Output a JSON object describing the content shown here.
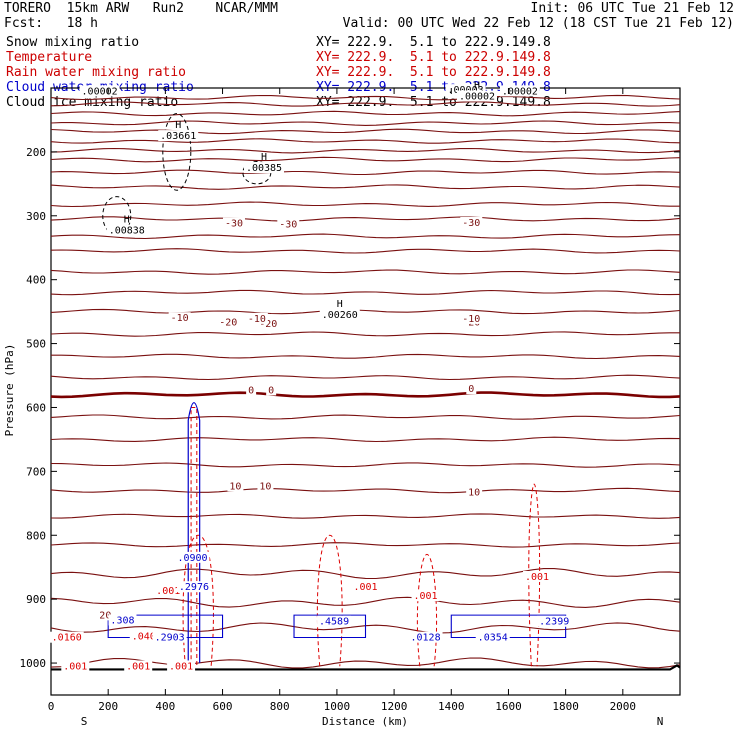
{
  "header": {
    "model_title": "TORERO  15km ARW   Run2    NCAR/MMM",
    "init": "Init: 06 UTC Tue 21 Feb 12",
    "fcst": "Fcst:   18 h",
    "valid": "Valid: 00 UTC Wed 22 Feb 12 (18 CST Tue 21 Feb 12)"
  },
  "fields": [
    {
      "label": "Snow mixing ratio",
      "xy": "XY= 222.9.  5.1 to 222.9.149.8",
      "color": "#000000"
    },
    {
      "label": "Temperature",
      "xy": "XY= 222.9.  5.1 to 222.9.149.8",
      "color": "#cc0000"
    },
    {
      "label": "Rain water mixing ratio",
      "xy": "XY= 222.9.  5.1 to 222.9.149.8",
      "color": "#cc0000"
    },
    {
      "label": "Cloud water mixing ratio",
      "xy": "XY= 222.9.  5.1 to 222.9.149.8",
      "color": "#0000cc"
    },
    {
      "label": "Cloud ice mixing ratio",
      "xy": "XY= 222.9.  5.1 to 222.9.149.8",
      "color": "#000000"
    }
  ],
  "colors": {
    "temperature": "#7a1010",
    "freezing": "#7a0000",
    "rain": "#dd0000",
    "cloud_water": "#0000cc",
    "snow": "#000000"
  },
  "chart_data": {
    "type": "cross-section contour",
    "xlabel": "Distance (km)",
    "ylabel": "Pressure (hPa)",
    "xlim": [
      0,
      2200
    ],
    "ylim": [
      1050,
      100
    ],
    "x_ticks": [
      0,
      200,
      400,
      600,
      800,
      1000,
      1200,
      1400,
      1600,
      1800,
      2000
    ],
    "y_ticks": [
      200,
      300,
      400,
      500,
      600,
      700,
      800,
      900,
      1000
    ],
    "left_end": "S",
    "right_end": "N",
    "temperature_levels_hpa": [
      115,
      125,
      140,
      155,
      168,
      183,
      198,
      212,
      232,
      255,
      282,
      305,
      332,
      355,
      388,
      420,
      450,
      485,
      520,
      553,
      580,
      615,
      650,
      690,
      730,
      770,
      815,
      860,
      905,
      945,
      1000
    ],
    "isotherm_labels": [
      {
        "text": "-30",
        "x": 640,
        "p": 317
      },
      {
        "text": "-30",
        "x": 830,
        "p": 318
      },
      {
        "text": "-30",
        "x": 1470,
        "p": 316
      },
      {
        "text": "-20",
        "x": 620,
        "p": 472
      },
      {
        "text": "-20",
        "x": 760,
        "p": 474
      },
      {
        "text": "-20",
        "x": 1470,
        "p": 472
      },
      {
        "text": "-10",
        "x": 450,
        "p": 465
      },
      {
        "text": "-10",
        "x": 720,
        "p": 466
      },
      {
        "text": "-10",
        "x": 1470,
        "p": 466
      },
      {
        "text": "0",
        "x": 700,
        "p": 578
      },
      {
        "text": "0",
        "x": 770,
        "p": 578
      },
      {
        "text": "0",
        "x": 1470,
        "p": 576
      },
      {
        "text": "10",
        "x": 645,
        "p": 728
      },
      {
        "text": "10",
        "x": 750,
        "p": 728
      },
      {
        "text": "10",
        "x": 1480,
        "p": 738
      },
      {
        "text": "20",
        "x": 190,
        "p": 930
      }
    ],
    "maxima_labels": [
      {
        "text": ".00002",
        "x": 170,
        "p": 110,
        "marker": ""
      },
      {
        "text": ".03661",
        "x": 445,
        "p": 180,
        "marker": "H"
      },
      {
        "text": ".00385",
        "x": 745,
        "p": 230,
        "marker": "H"
      },
      {
        "text": ".00838",
        "x": 265,
        "p": 328,
        "marker": "H"
      },
      {
        "text": ".00260",
        "x": 1010,
        "p": 460,
        "marker": "H"
      },
      {
        "text": ".00003",
        "x": 1450,
        "p": 108,
        "marker": ""
      },
      {
        "text": ".00002",
        "x": 1640,
        "p": 110,
        "marker": ""
      },
      {
        "text": ".00002",
        "x": 1490,
        "p": 118,
        "marker": "H"
      }
    ],
    "rain_labels": [
      {
        "text": ".001",
        "x": 410,
        "p": 892
      },
      {
        "text": ".001",
        "x": 1100,
        "p": 886
      },
      {
        "text": ".001",
        "x": 1310,
        "p": 900
      },
      {
        "text": ".001",
        "x": 1700,
        "p": 870
      },
      {
        "text": ".0160",
        "x": 55,
        "p": 965
      },
      {
        "text": ".0407",
        "x": 335,
        "p": 963
      },
      {
        "text": ".001",
        "x": 85,
        "p": 1010
      },
      {
        "text": ".001",
        "x": 305,
        "p": 1010
      },
      {
        "text": ".001",
        "x": 455,
        "p": 1010
      }
    ],
    "cloud_labels": [
      {
        "text": ".0900",
        "x": 495,
        "p": 840
      },
      {
        "text": ".308",
        "x": 250,
        "p": 938
      },
      {
        "text": ".2903",
        "x": 415,
        "p": 965
      },
      {
        "text": ".4589",
        "x": 990,
        "p": 940
      },
      {
        "text": ".0128",
        "x": 1310,
        "p": 965
      },
      {
        "text": ".0354",
        "x": 1545,
        "p": 965
      },
      {
        "text": ".2399",
        "x": 1760,
        "p": 940
      },
      {
        "text": ".2976",
        "x": 500,
        "p": 886
      }
    ]
  }
}
